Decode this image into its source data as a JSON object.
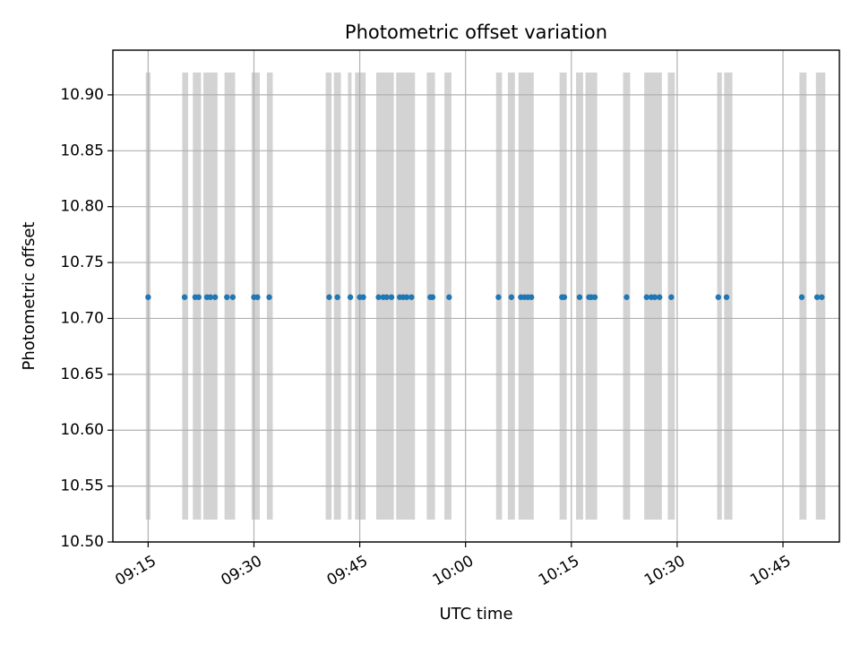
{
  "chart_data": {
    "type": "scatter",
    "title": "Photometric offset variation",
    "xlabel": "UTC time",
    "ylabel": "Photometric offset",
    "x_ticks": [
      "09:15",
      "09:30",
      "09:45",
      "10:00",
      "10:15",
      "10:30",
      "10:45"
    ],
    "y_ticks": [
      "10.50",
      "10.55",
      "10.60",
      "10.65",
      "10.70",
      "10.75",
      "10.80",
      "10.85",
      "10.90"
    ],
    "xlim": [
      "09:10:00",
      "10:53:00"
    ],
    "ylim": [
      10.5,
      10.94
    ],
    "grid": true,
    "legend": "none",
    "colors": {
      "points": "#1f77b4",
      "bands": "#d3d3d3",
      "grid": "#b0b0b0"
    },
    "bands": {
      "y_range": [
        10.52,
        10.92
      ],
      "x_ranges": [
        [
          "09:14:40",
          "09:15:20"
        ],
        [
          "09:19:50",
          "09:20:40"
        ],
        [
          "09:21:20",
          "09:22:30"
        ],
        [
          "09:22:50",
          "09:24:50"
        ],
        [
          "09:25:50",
          "09:27:20"
        ],
        [
          "09:29:40",
          "09:30:50"
        ],
        [
          "09:31:50",
          "09:32:40"
        ],
        [
          "09:40:10",
          "09:41:00"
        ],
        [
          "09:41:20",
          "09:42:20"
        ],
        [
          "09:43:20",
          "09:43:50"
        ],
        [
          "09:44:20",
          "09:45:50"
        ],
        [
          "09:47:20",
          "09:49:50"
        ],
        [
          "09:50:10",
          "09:52:50"
        ],
        [
          "09:54:30",
          "09:55:40"
        ],
        [
          "09:57:00",
          "09:58:00"
        ],
        [
          "10:04:20",
          "10:05:10"
        ],
        [
          "10:06:00",
          "10:07:00"
        ],
        [
          "10:07:30",
          "10:09:40"
        ],
        [
          "10:13:20",
          "10:14:20"
        ],
        [
          "10:15:40",
          "10:16:40"
        ],
        [
          "10:17:00",
          "10:18:40"
        ],
        [
          "10:22:20",
          "10:23:20"
        ],
        [
          "10:25:20",
          "10:27:50"
        ],
        [
          "10:28:40",
          "10:29:40"
        ],
        [
          "10:35:40",
          "10:36:20"
        ],
        [
          "10:36:40",
          "10:37:50"
        ],
        [
          "10:47:20",
          "10:48:20"
        ],
        [
          "10:49:40",
          "10:51:00"
        ]
      ]
    },
    "series": [
      {
        "x": [
          "09:15:00",
          "09:20:10",
          "09:21:40",
          "09:22:10",
          "09:23:20",
          "09:23:50",
          "09:24:30",
          "09:26:10",
          "09:27:00",
          "09:30:00",
          "09:30:30",
          "09:32:10",
          "09:40:40",
          "09:41:50",
          "09:43:40",
          "09:45:00",
          "09:45:30",
          "09:47:40",
          "09:48:20",
          "09:48:50",
          "09:49:30",
          "09:50:40",
          "09:51:10",
          "09:51:40",
          "09:52:20",
          "09:55:00",
          "09:55:20",
          "09:57:40",
          "10:04:40",
          "10:06:30",
          "10:07:50",
          "10:08:20",
          "10:08:50",
          "10:09:20",
          "10:13:40",
          "10:14:00",
          "10:16:10",
          "10:17:30",
          "10:17:50",
          "10:18:20",
          "10:22:50",
          "10:25:40",
          "10:26:20",
          "10:26:50",
          "10:27:30",
          "10:29:10",
          "10:35:50",
          "10:37:00",
          "10:47:40",
          "10:49:50",
          "10:50:30"
        ],
        "y_value": 10.719
      }
    ]
  }
}
